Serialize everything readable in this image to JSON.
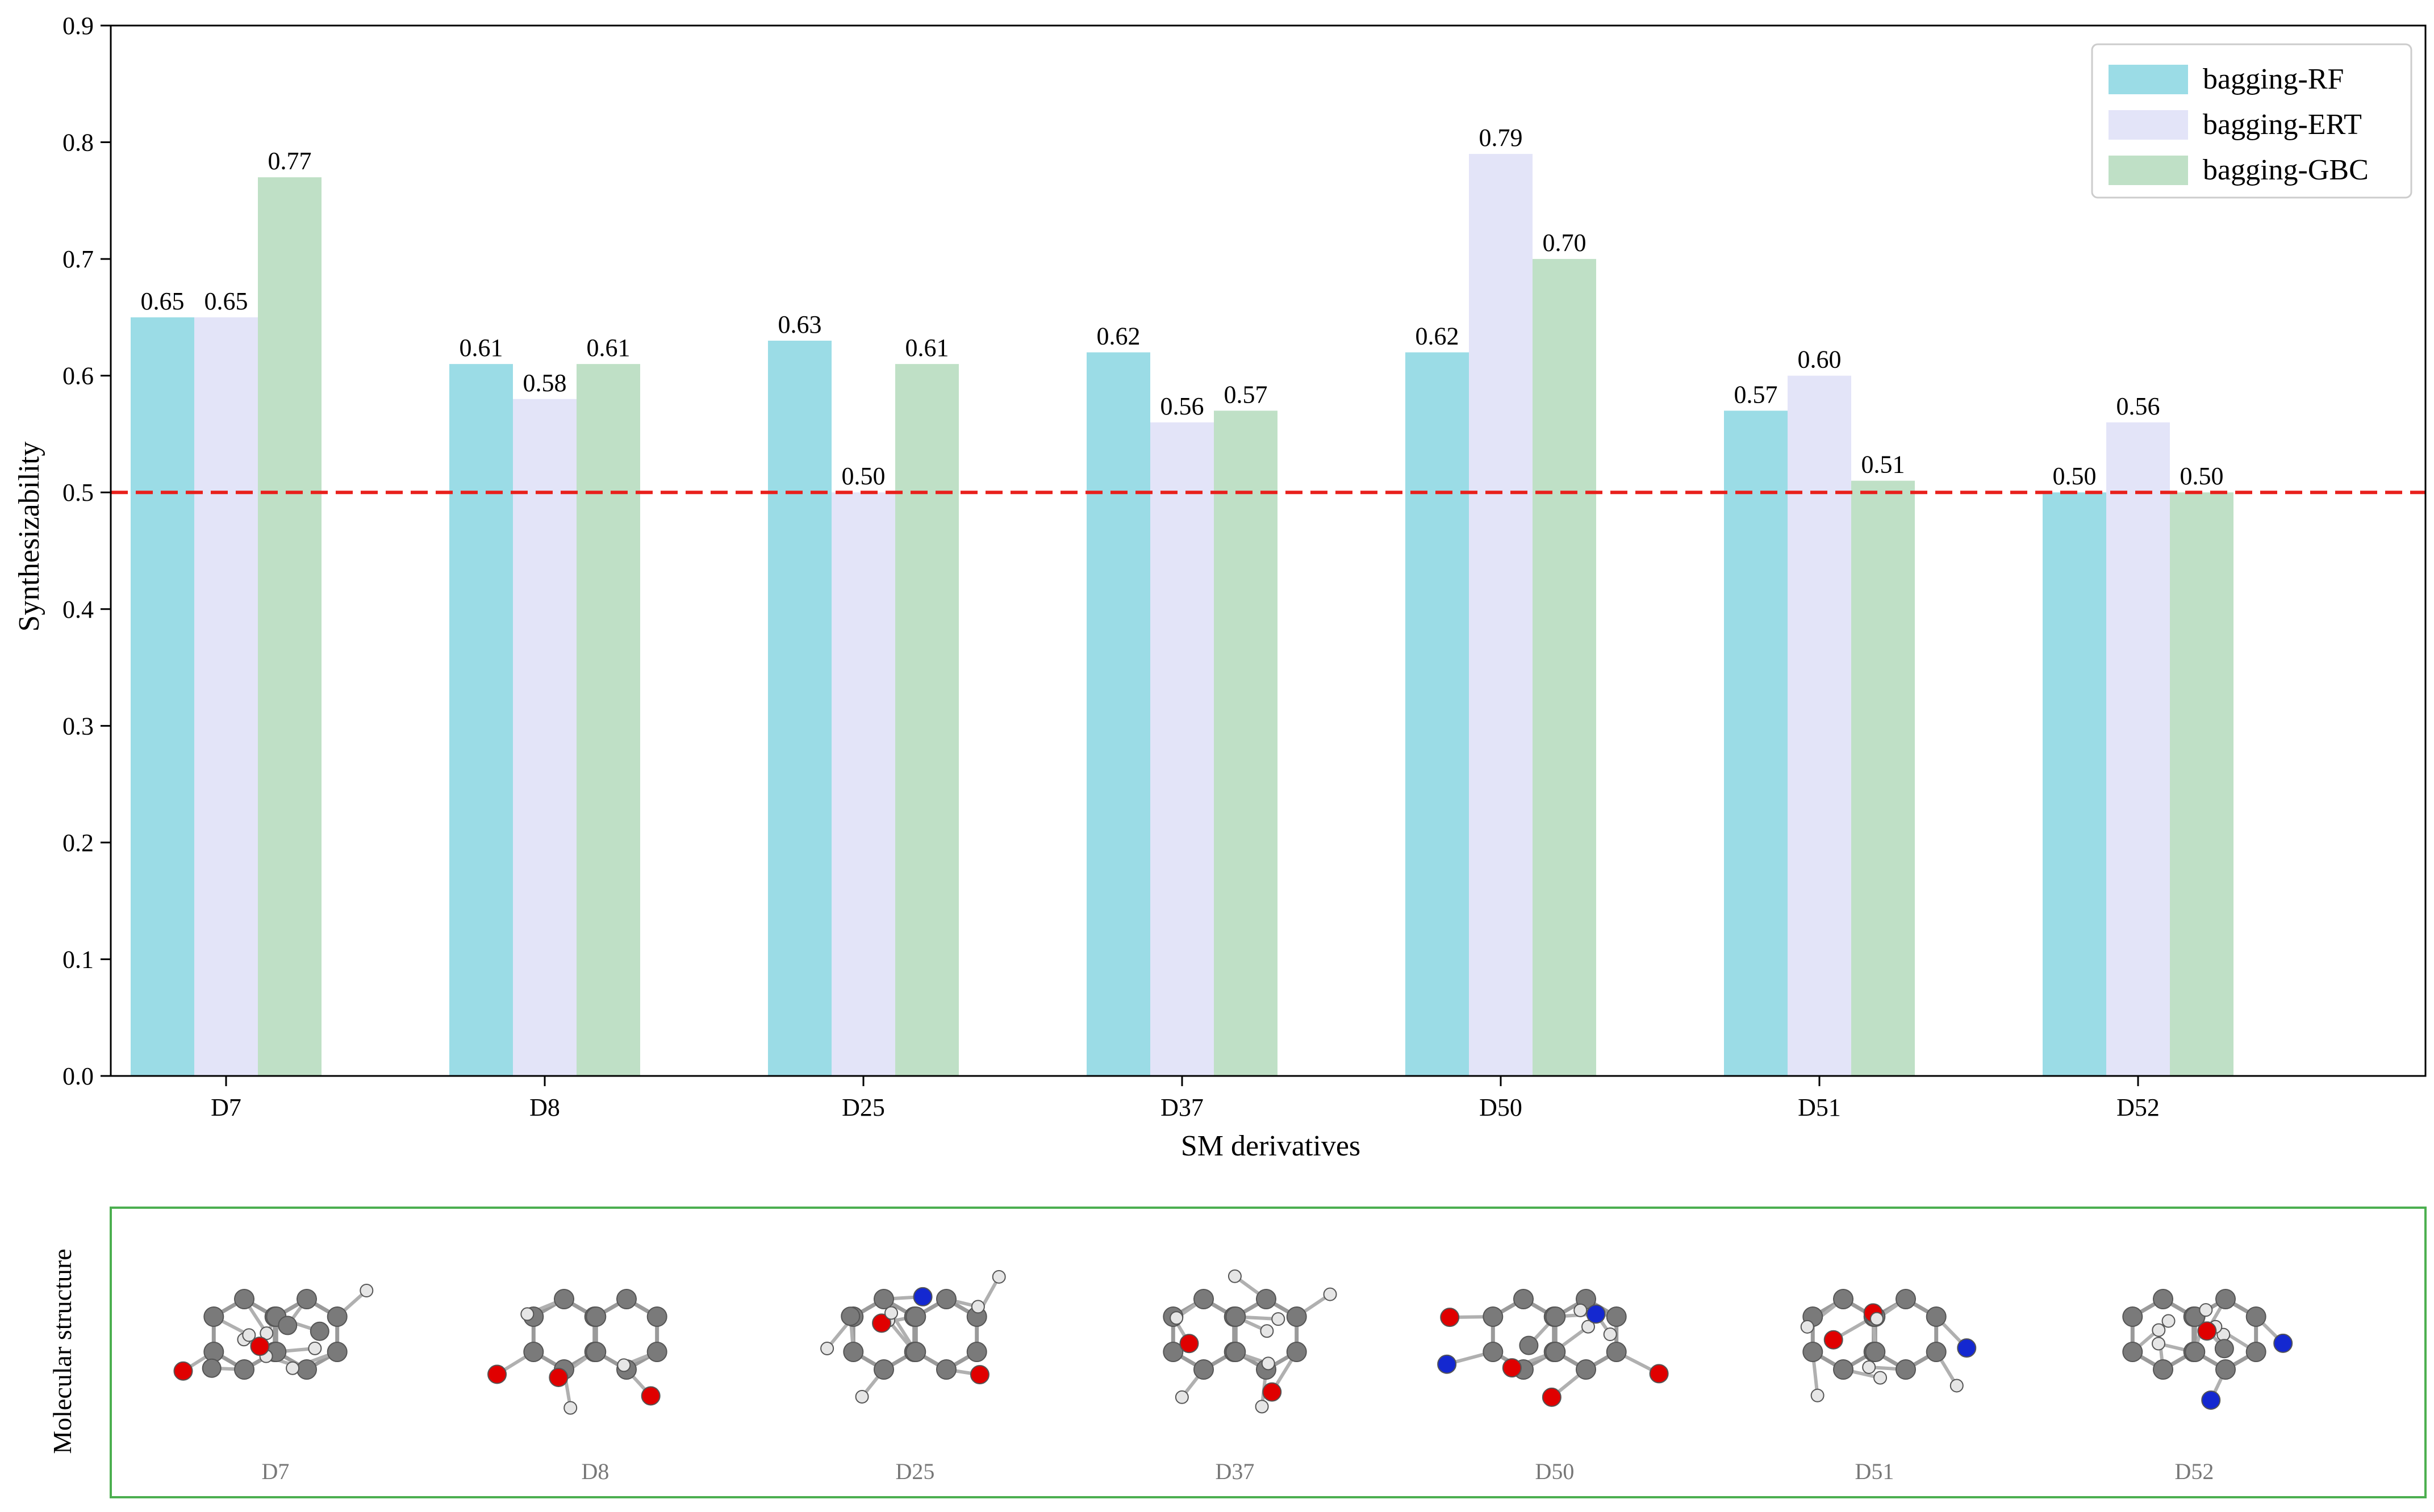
{
  "chart_data": {
    "type": "bar",
    "categories": [
      "D7",
      "D8",
      "D25",
      "D37",
      "D50",
      "D51",
      "D52"
    ],
    "series": [
      {
        "name": "bagging-RF",
        "color": "#9bdce6",
        "values": [
          0.65,
          0.61,
          0.63,
          0.62,
          0.62,
          0.57,
          0.5
        ]
      },
      {
        "name": "bagging-ERT",
        "color": "#e3e4f8",
        "values": [
          0.65,
          0.58,
          0.5,
          0.56,
          0.79,
          0.6,
          0.56
        ]
      },
      {
        "name": "bagging-GBC",
        "color": "#bfe0c6",
        "values": [
          0.77,
          0.61,
          0.61,
          0.57,
          0.7,
          0.51,
          0.5
        ]
      }
    ],
    "data_labels": [
      [
        "0.65",
        "0.61",
        "0.63",
        "0.62",
        "0.62",
        "0.57",
        "0.50"
      ],
      [
        "0.65",
        "0.58",
        "0.50",
        "0.56",
        "0.79",
        "0.60",
        "0.56"
      ],
      [
        "0.77",
        "0.61",
        "0.61",
        "0.57",
        "0.70",
        "0.51",
        "0.50"
      ]
    ],
    "xlabel": "SM derivatives",
    "ylabel": "Synthesizability",
    "ylim": [
      0.0,
      0.9
    ],
    "yticks": [
      0.0,
      0.1,
      0.2,
      0.3,
      0.4,
      0.5,
      0.6,
      0.7,
      0.8,
      0.9
    ],
    "ytick_labels": [
      "0.0",
      "0.1",
      "0.2",
      "0.3",
      "0.4",
      "0.5",
      "0.6",
      "0.7",
      "0.8",
      "0.9"
    ],
    "threshold": {
      "value": 0.5,
      "color": "#e8201c",
      "style": "dashed"
    },
    "legend_position": "top-right"
  },
  "structure_panel": {
    "title": "Molecular structure",
    "border_color": "#4caf50",
    "labels": [
      "D7",
      "D8",
      "D25",
      "D37",
      "D50",
      "D51",
      "D52"
    ],
    "atom_colors": {
      "carbon": "#7a7a7a",
      "hydrogen": "#e6e6e6",
      "oxygen": "#e00000",
      "nitrogen": "#1428d0"
    }
  }
}
